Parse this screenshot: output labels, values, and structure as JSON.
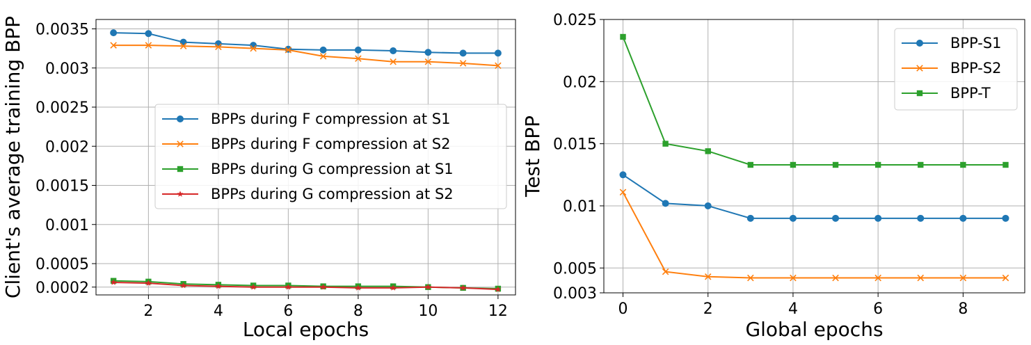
{
  "chart_data": [
    {
      "type": "line",
      "xlabel": "Local epochs",
      "ylabel": "Client's average training BPP",
      "xlim": [
        0.5,
        12.5
      ],
      "ylim": [
        0.0001,
        0.00362
      ],
      "xticks": [
        2,
        4,
        6,
        8,
        10,
        12
      ],
      "yticks": [
        0.0002,
        0.0005,
        0.001,
        0.0015,
        0.002,
        0.0025,
        0.003,
        0.0035
      ],
      "ytick_labels": [
        "0.0002",
        "0.0005",
        "0.001",
        "0.0015",
        "0.002",
        "0.0025",
        "0.003",
        "0.0035"
      ],
      "grid": true,
      "legend_position": "center-right",
      "x": [
        1,
        2,
        3,
        4,
        5,
        6,
        7,
        8,
        9,
        10,
        11,
        12
      ],
      "series": [
        {
          "name": "BPPs during F compression at S1",
          "color": "#1f77b4",
          "marker": "circle",
          "values": [
            0.00345,
            0.00344,
            0.00333,
            0.00331,
            0.00329,
            0.00324,
            0.00323,
            0.00323,
            0.00322,
            0.0032,
            0.00319,
            0.00319
          ]
        },
        {
          "name": "BPPs during F compression at S2",
          "color": "#ff7f0e",
          "marker": "x",
          "values": [
            0.00329,
            0.00329,
            0.00328,
            0.00327,
            0.00325,
            0.00323,
            0.00315,
            0.00312,
            0.00308,
            0.00308,
            0.00306,
            0.00303
          ]
        },
        {
          "name": "BPPs during G compression at S1",
          "color": "#2ca02c",
          "marker": "square",
          "values": [
            0.00028,
            0.00027,
            0.00024,
            0.00023,
            0.00022,
            0.00022,
            0.00021,
            0.00021,
            0.00021,
            0.0002,
            0.00019,
            0.00018
          ]
        },
        {
          "name": "BPPs during G compression at S2",
          "color": "#d62728",
          "marker": "star",
          "values": [
            0.00026,
            0.00025,
            0.00022,
            0.00021,
            0.0002,
            0.0002,
            0.0002,
            0.00019,
            0.00019,
            0.0002,
            0.00019,
            0.00017
          ]
        }
      ]
    },
    {
      "type": "line",
      "xlabel": "Global epochs",
      "ylabel": "Test BPP",
      "xlim": [
        -0.45,
        9.45
      ],
      "ylim": [
        0.003,
        0.025
      ],
      "xticks": [
        0,
        2,
        4,
        6,
        8
      ],
      "yticks": [
        0.003,
        0.005,
        0.01,
        0.015,
        0.02,
        0.025
      ],
      "ytick_labels": [
        "0.003",
        "0.005",
        "0.01",
        "0.015",
        "0.02",
        "0.025"
      ],
      "grid": true,
      "legend_position": "top-right",
      "x": [
        0,
        1,
        2,
        3,
        4,
        5,
        6,
        7,
        8,
        9
      ],
      "series": [
        {
          "name": "BPP-S1",
          "color": "#1f77b4",
          "marker": "circle",
          "values": [
            0.0125,
            0.0102,
            0.01,
            0.009,
            0.009,
            0.009,
            0.009,
            0.009,
            0.009,
            0.009
          ]
        },
        {
          "name": "BPP-S2",
          "color": "#ff7f0e",
          "marker": "x",
          "values": [
            0.0111,
            0.0047,
            0.0043,
            0.0042,
            0.0042,
            0.0042,
            0.0042,
            0.0042,
            0.0042,
            0.0042
          ]
        },
        {
          "name": "BPP-T",
          "color": "#2ca02c",
          "marker": "square",
          "values": [
            0.0236,
            0.015,
            0.0144,
            0.0133,
            0.0133,
            0.0133,
            0.0133,
            0.0133,
            0.0133,
            0.0133
          ]
        }
      ]
    }
  ]
}
